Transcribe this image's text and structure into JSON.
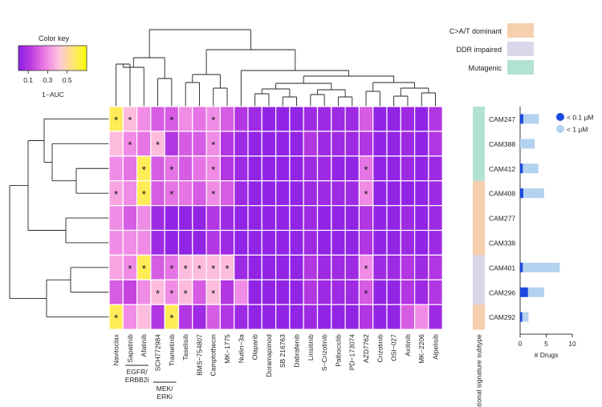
{
  "chart_data": {
    "type": "heatmap",
    "title": "",
    "colorkey": {
      "title": "Color key",
      "label": "1−AUC",
      "ticks": [
        "0.1",
        "0.3",
        "0.5"
      ],
      "tick_values": [
        0.1,
        0.3,
        0.5
      ],
      "range": [
        0,
        0.7
      ],
      "colors": [
        "#8a1fe6",
        "#c23fe0",
        "#ee82e6",
        "#ffc6dc",
        "#ffe47a",
        "#ffff00"
      ]
    },
    "legend": [
      {
        "label": "C>A/T dominant",
        "color": "#f5cfae"
      },
      {
        "label": "DDR impaired",
        "color": "#dcd6ea"
      },
      {
        "label": "Mutagenic",
        "color": "#b2e2d2"
      }
    ],
    "drugs": [
      "Navitoclax",
      "Sapatinib",
      "Afatinib",
      "SCH772984",
      "Trametinib",
      "Taselisib",
      "BMS−754807",
      "Camptothecin",
      "MK−1775",
      "Nutlin−3a",
      "Olaparib",
      "Doramapimod",
      "SB 216763",
      "Dabrafenib",
      "Linsitinib",
      "S−Crizotinib",
      "Palbociclib",
      "PD−173074",
      "AZD7762",
      "Crizotinib",
      "OSI−027",
      "Axitinib",
      "MK−2206",
      "Alpelisib"
    ],
    "drug_groups": [
      {
        "label": "EGFR/\nERBB2i",
        "label_lines": [
          "EGFR/",
          "ERBB2i"
        ],
        "drugs": [
          "Sapatinib",
          "Afatinib"
        ]
      },
      {
        "label": "MEK/\nERKi",
        "label_lines": [
          "MEK/",
          "ERKi"
        ],
        "drugs": [
          "SCH772984",
          "Trametinib"
        ]
      }
    ],
    "subtype_column_label": "Mutational signature subtype",
    "samples": [
      "CAM247",
      "CAM388",
      "CAM412",
      "CAM408",
      "CAM277",
      "CAM338",
      "CAM401",
      "CAM296",
      "CAM292"
    ],
    "sample_subtype": [
      "Mutagenic",
      "Mutagenic",
      "Mutagenic",
      "C>A/T dominant",
      "C>A/T dominant",
      "C>A/T dominant",
      "DDR impaired",
      "DDR impaired",
      "C>A/T dominant"
    ],
    "values": [
      [
        0.6,
        0.4,
        0.3,
        0.2,
        0.2,
        0.3,
        0.25,
        0.3,
        0.2,
        0.1,
        0.05,
        0.02,
        0.02,
        0.02,
        0.05,
        0.05,
        0.05,
        0.05,
        0.2,
        0.02,
        0.02,
        0.05,
        0.02,
        0.1
      ],
      [
        0.4,
        0.3,
        0.25,
        0.4,
        0.1,
        0.2,
        0.2,
        0.3,
        0.1,
        0.05,
        0.02,
        0.02,
        0.02,
        0.02,
        0.1,
        0.05,
        0.05,
        0.05,
        0.1,
        0.02,
        0.02,
        0.05,
        0.02,
        0.1
      ],
      [
        0.3,
        0.25,
        0.6,
        0.2,
        0.25,
        0.2,
        0.25,
        0.3,
        0.1,
        0.05,
        0.02,
        0.02,
        0.02,
        0.02,
        0.05,
        0.05,
        0.02,
        0.02,
        0.25,
        0.02,
        0.02,
        0.05,
        0.02,
        0.05
      ],
      [
        0.35,
        0.3,
        0.6,
        0.2,
        0.25,
        0.25,
        0.2,
        0.3,
        0.2,
        0.05,
        0.02,
        0.02,
        0.02,
        0.02,
        0.05,
        0.05,
        0.05,
        0.05,
        0.3,
        0.02,
        0.02,
        0.02,
        0.02,
        0.05
      ],
      [
        0.3,
        0.2,
        0.3,
        0.05,
        0.02,
        0.02,
        0.02,
        0.1,
        0.05,
        0.02,
        0.02,
        0.02,
        0.02,
        0.02,
        0.05,
        0.02,
        0.02,
        0.02,
        0.1,
        0.02,
        0.02,
        0.05,
        0.02,
        0.05
      ],
      [
        0.3,
        0.3,
        0.3,
        0.05,
        0.02,
        0.02,
        0.02,
        0.1,
        0.05,
        0.02,
        0.02,
        0.02,
        0.02,
        0.02,
        0.05,
        0.02,
        0.02,
        0.02,
        0.1,
        0.02,
        0.02,
        0.05,
        0.02,
        0.05
      ],
      [
        0.35,
        0.3,
        0.6,
        0.2,
        0.25,
        0.4,
        0.4,
        0.4,
        0.4,
        0.05,
        0.02,
        0.02,
        0.02,
        0.02,
        0.1,
        0.05,
        0.05,
        0.05,
        0.3,
        0.05,
        0.05,
        0.1,
        0.05,
        0.1
      ],
      [
        0.2,
        0.15,
        0.3,
        0.4,
        0.3,
        0.4,
        0.2,
        0.4,
        0.1,
        0.3,
        0.02,
        0.02,
        0.02,
        0.02,
        0.1,
        0.05,
        0.05,
        0.05,
        0.2,
        0.02,
        0.02,
        0.1,
        0.05,
        0.1
      ],
      [
        0.6,
        0.3,
        0.4,
        0.1,
        0.6,
        0.1,
        0.05,
        0.2,
        0.1,
        0.05,
        0.02,
        0.02,
        0.02,
        0.02,
        0.05,
        0.02,
        0.02,
        0.02,
        0.1,
        0.02,
        0.02,
        0.2,
        0.3,
        0.05
      ]
    ],
    "stars": [
      [
        "Navitoclax",
        "Sapatinib",
        "Trametinib",
        "Camptothecin"
      ],
      [
        "Sapatinib",
        "SCH772984",
        "Camptothecin"
      ],
      [
        "Afatinib",
        "Trametinib",
        "Camptothecin",
        "AZD7762"
      ],
      [
        "Navitoclax",
        "Afatinib",
        "Trametinib",
        "Camptothecin",
        "AZD7762"
      ],
      [],
      [],
      [
        "Sapatinib",
        "Afatinib",
        "Trametinib",
        "Taselisib",
        "BMS−754807",
        "Camptothecin",
        "MK−1775",
        "AZD7762"
      ],
      [
        "SCH772984",
        "Trametinib",
        "Taselisib",
        "Camptothecin",
        "AZD7762"
      ],
      [
        "Navitoclax",
        "Trametinib"
      ]
    ],
    "star_symbol": "*",
    "bar_chart": {
      "type": "bar",
      "orientation": "horizontal",
      "xlabel": "# Drugs",
      "xlim": [
        0,
        10
      ],
      "ticks": [
        0,
        5,
        10
      ],
      "series": [
        {
          "name": "< 0.1 µM",
          "color": "#1a49e0",
          "values": [
            0.6,
            0,
            0.5,
            0.6,
            0,
            0,
            0.5,
            1.5,
            0.4
          ]
        },
        {
          "name": "< 1 µM",
          "color": "#b3d2ef",
          "values": [
            3.6,
            2.8,
            3.5,
            4.6,
            0,
            0,
            7.6,
            4.6,
            1.6
          ]
        }
      ]
    }
  }
}
